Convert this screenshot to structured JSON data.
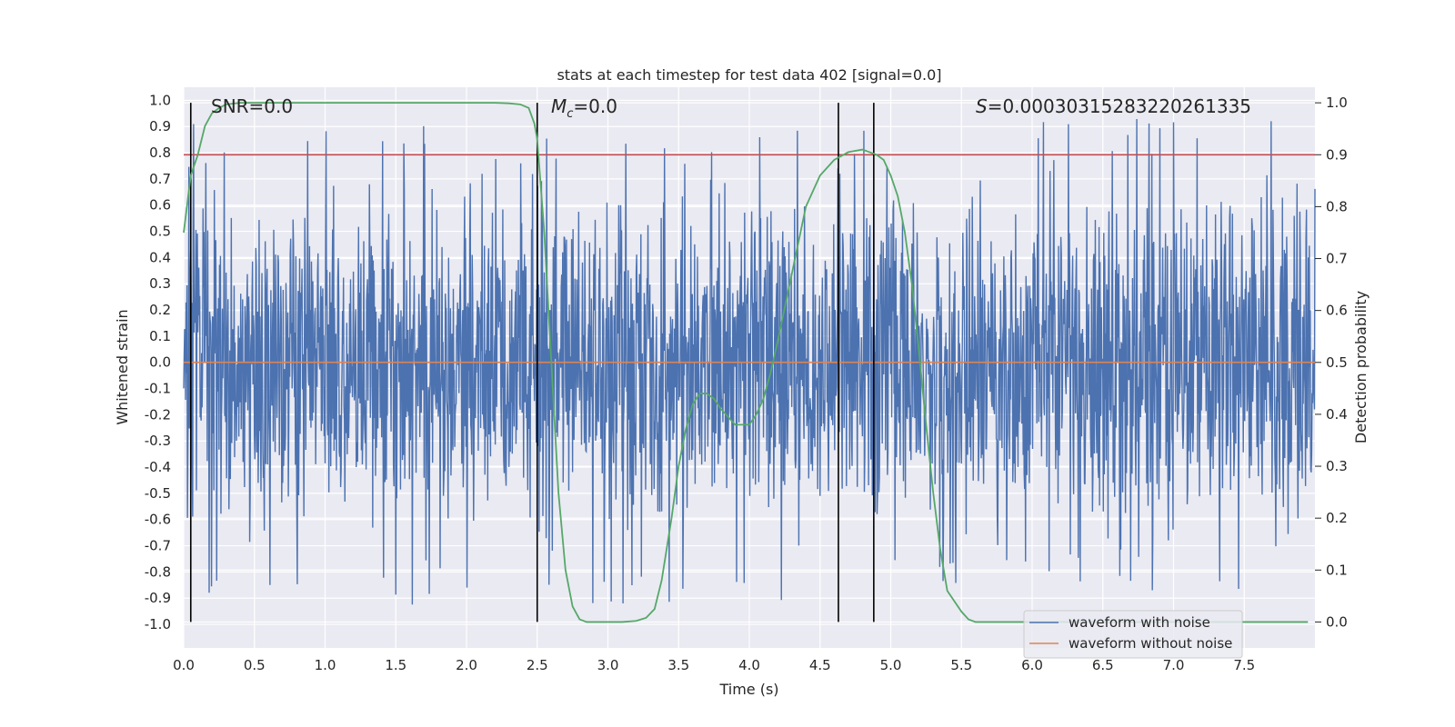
{
  "chart_data": {
    "type": "line",
    "title": "stats at each timestep for test data 402 [signal=0.0]",
    "xlabel": "Time (s)",
    "ylabel": "Whitened strain",
    "y2label": "Detection probability",
    "xlim": [
      0.0,
      8.0
    ],
    "ylim": [
      -1.09,
      1.05
    ],
    "y2lim": [
      -0.05,
      1.03
    ],
    "xticks": [
      "0.0",
      "0.5",
      "1.0",
      "1.5",
      "2.0",
      "2.5",
      "3.0",
      "3.5",
      "4.0",
      "4.5",
      "5.0",
      "5.5",
      "6.0",
      "6.5",
      "7.0",
      "7.5"
    ],
    "yticks": [
      "1.0",
      "0.9",
      "0.8",
      "0.7",
      "0.6",
      "0.5",
      "0.4",
      "0.3",
      "0.2",
      "0.1",
      "0.0",
      "-0.1",
      "-0.2",
      "-0.3",
      "-0.4",
      "-0.5",
      "-0.6",
      "-0.7",
      "-0.8",
      "-0.9",
      "-1.0"
    ],
    "y2ticks": [
      "1.0",
      "0.9",
      "0.8",
      "0.7",
      "0.6",
      "0.5",
      "0.4",
      "0.3",
      "0.2",
      "0.1",
      "0.0"
    ],
    "annotations": {
      "snr": "SNR=0.0",
      "mc_sym": "M",
      "mc_sub": "c",
      "mc_val": "=0.0",
      "s_sym": "S",
      "s_val": "=0.00030315283220261335"
    },
    "threshold": 0.9,
    "vertical_lines": [
      0.05,
      2.5,
      4.63,
      4.88
    ],
    "series": [
      {
        "name": "waveform with noise",
        "color": "#4c72b0",
        "kind": "noise",
        "typical_envelope": 0.5,
        "max_abs_peak": 0.93
      },
      {
        "name": "waveform without noise",
        "color": "#dd8452",
        "value": 0.0
      },
      {
        "name": "detection probability",
        "color": "#55a868",
        "axis": "right",
        "x": [
          0.0,
          0.05,
          0.1,
          0.15,
          0.2,
          0.25,
          0.3,
          0.4,
          0.5,
          1.0,
          1.5,
          2.0,
          2.2,
          2.3,
          2.38,
          2.44,
          2.48,
          2.5,
          2.55,
          2.6,
          2.65,
          2.7,
          2.75,
          2.8,
          2.85,
          2.9,
          3.0,
          3.1,
          3.2,
          3.27,
          3.33,
          3.38,
          3.45,
          3.5,
          3.55,
          3.6,
          3.65,
          3.7,
          3.75,
          3.8,
          3.85,
          3.9,
          3.95,
          4.0,
          4.05,
          4.1,
          4.15,
          4.2,
          4.3,
          4.4,
          4.5,
          4.6,
          4.7,
          4.8,
          4.85,
          4.9,
          4.95,
          5.0,
          5.05,
          5.1,
          5.15,
          5.2,
          5.25,
          5.3,
          5.35,
          5.4,
          5.5,
          5.55,
          5.6,
          5.7,
          5.8,
          6.0,
          7.0,
          7.95
        ],
        "y": [
          0.75,
          0.86,
          0.9,
          0.955,
          0.98,
          0.99,
          0.997,
          1.0,
          1.0,
          1.0,
          1.0,
          1.0,
          1.0,
          0.999,
          0.997,
          0.99,
          0.96,
          0.93,
          0.75,
          0.5,
          0.25,
          0.1,
          0.03,
          0.005,
          0.0,
          0.0,
          0.0,
          0.0,
          0.002,
          0.008,
          0.025,
          0.08,
          0.2,
          0.3,
          0.37,
          0.42,
          0.44,
          0.44,
          0.43,
          0.41,
          0.395,
          0.38,
          0.38,
          0.38,
          0.4,
          0.43,
          0.48,
          0.54,
          0.67,
          0.8,
          0.86,
          0.89,
          0.905,
          0.91,
          0.905,
          0.9,
          0.89,
          0.86,
          0.82,
          0.75,
          0.65,
          0.52,
          0.38,
          0.25,
          0.14,
          0.06,
          0.02,
          0.005,
          0.0,
          0.0,
          0.0,
          0.0,
          0.0,
          0.0
        ]
      }
    ],
    "legend": {
      "position": "lower-right",
      "entries": [
        "waveform with noise",
        "waveform without noise"
      ]
    },
    "grid": true
  }
}
